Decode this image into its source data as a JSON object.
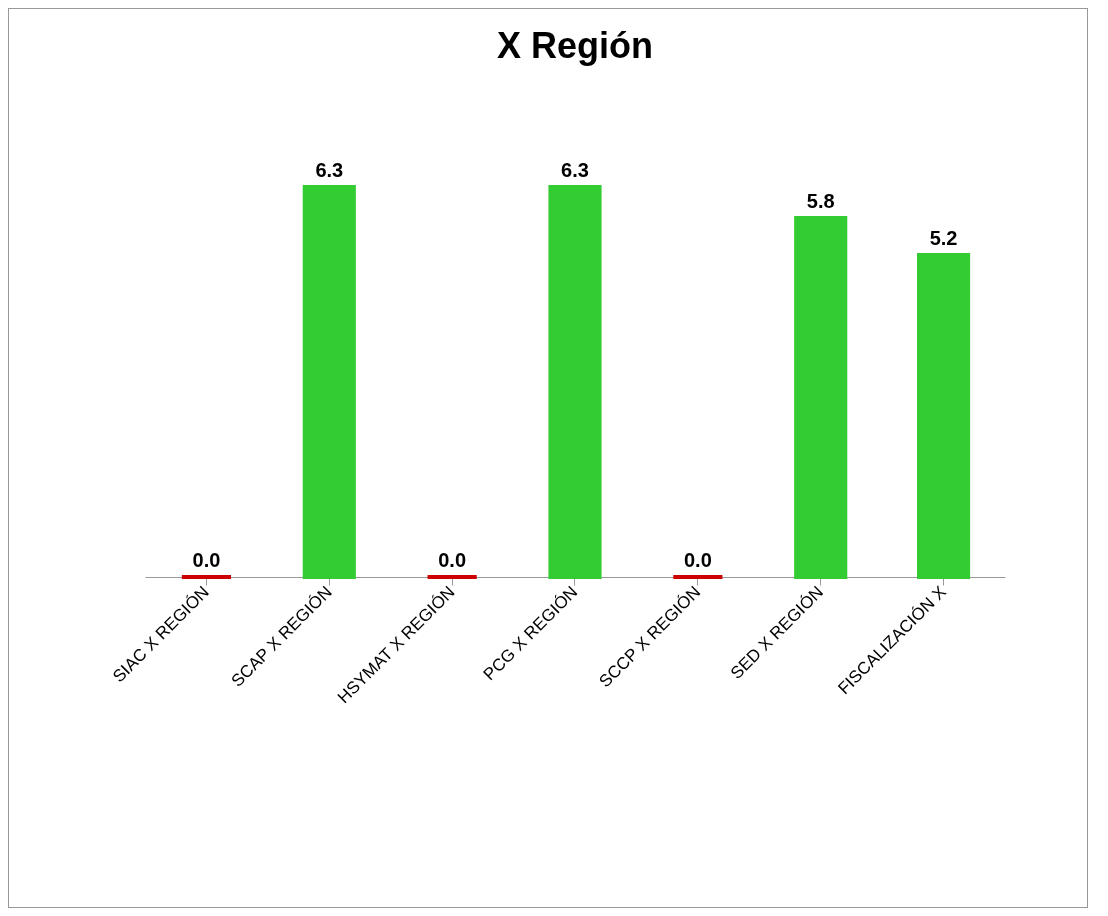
{
  "chart_data": {
    "type": "bar",
    "title": "X Región",
    "categories": [
      "SIAC X REGIÓN",
      "SCAP X REGIÓN",
      "HSYMAT X REGIÓN",
      "PCG X REGIÓN",
      "SCCP X REGIÓN",
      "SED  X REGIÓN",
      "FISCALIZACIÓN X"
    ],
    "values": [
      0,
      6.3,
      0,
      6.3,
      0,
      5.8,
      5.2
    ],
    "colors": [
      "#cc0000",
      "#33cc33",
      "#cc0000",
      "#33cc33",
      "#cc0000",
      "#33cc33",
      "#33cc33"
    ],
    "value_labels": [
      "0.0",
      "6.3",
      "0.0",
      "6.3",
      "0.0",
      "5.8",
      "5.2"
    ],
    "tick_labels": "x",
    "grid": false
  }
}
